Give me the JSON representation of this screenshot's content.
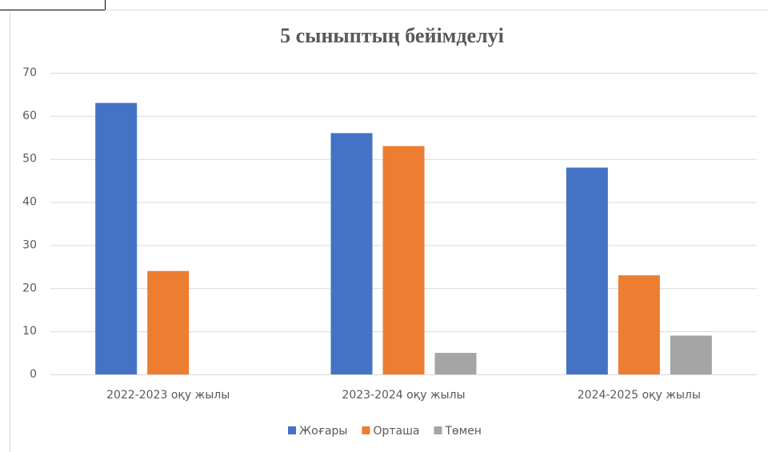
{
  "chart_data": {
    "type": "bar",
    "title": "5 сыныптың бейімделуі",
    "categories": [
      "2022-2023 оқу жылы",
      "2023-2024 оқу жылы",
      "2024-2025 оқу жылы"
    ],
    "series": [
      {
        "name": "Жоғары",
        "color": "#4472c4",
        "values": [
          63,
          56,
          48
        ]
      },
      {
        "name": "Орташа",
        "color": "#ed7d31",
        "values": [
          24,
          53,
          23
        ]
      },
      {
        "name": "Төмен",
        "color": "#a5a5a5",
        "values": [
          0,
          5,
          9
        ]
      }
    ],
    "ylim": [
      0,
      70
    ],
    "yticks": [
      0,
      10,
      20,
      30,
      40,
      50,
      60,
      70
    ],
    "grid": true,
    "legend": "bottom"
  }
}
